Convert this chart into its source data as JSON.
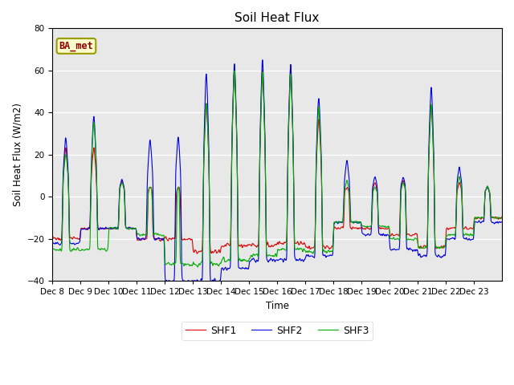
{
  "title": "Soil Heat Flux",
  "ylabel": "Soil Heat Flux (W/m2)",
  "xlabel": "Time",
  "ylim": [
    -40,
    80
  ],
  "yticks": [
    -40,
    -20,
    0,
    20,
    40,
    60,
    80
  ],
  "legend_labels": [
    "SHF1",
    "SHF2",
    "SHF3"
  ],
  "legend_colors": [
    "#dd0000",
    "#0000dd",
    "#00aa00"
  ],
  "annotation_text": "BA_met",
  "annotation_bg": "#ffffcc",
  "annotation_border": "#999900",
  "bg_color": "#e8e8e8",
  "line_width": 0.8,
  "xtick_labels": [
    "Dec 8",
    "Dec 9",
    "Dec 10",
    "Dec 11",
    "Dec 12",
    "Dec 13",
    "Dec 14",
    "Dec 15",
    "Dec 16",
    "Dec 17",
    "Dec 18",
    "Dec 19",
    "Dec 20",
    "Dec 21",
    "Dec 22",
    "Dec 23"
  ]
}
